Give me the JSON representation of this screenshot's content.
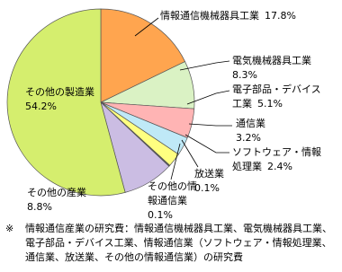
{
  "chart_data": {
    "type": "pie",
    "categories": [
      "情報通信機械器具工業",
      "電気機械器具工業",
      "電子部品・デバイス工業",
      "通信業",
      "ソフトウェア・情報処理業",
      "放送業",
      "その他の情報通信業",
      "その他の産業",
      "その他の製造業"
    ],
    "values": [
      17.8,
      8.3,
      5.1,
      3.2,
      2.4,
      0.1,
      0.1,
      8.8,
      54.2
    ],
    "value_labels": [
      "17.8%",
      "8.3%",
      "5.1%",
      "3.2%",
      "2.4%",
      "0.1%",
      "0.1%",
      "8.8%",
      "54.2%"
    ],
    "colors": [
      "#ffa54f",
      "#daf2c4",
      "#ffb4b4",
      "#bfe9f7",
      "#ffff80",
      "#ffffff",
      "#ffffff",
      "#cbbde3",
      "#d5ee6e"
    ],
    "note_mark": "※",
    "note": "情報通信産業の研究費：情報通信機械器具工業、電気機械器具工業、電子部品・デバイス工業、情報通信業（ソフトウェア・情報処理業、通信業、放送業、その他の情報通信業）の研究費"
  }
}
